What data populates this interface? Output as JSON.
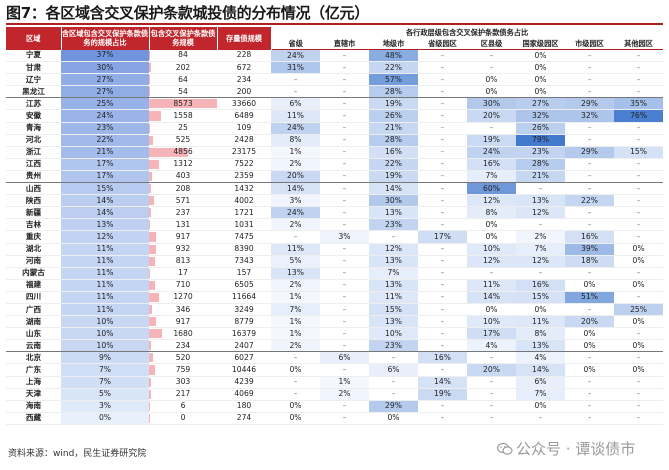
{
  "title": "图7：各区域含交叉保护条款城投债的分布情况（亿元）",
  "source": "资料来源：wind，民生证券研究院",
  "watermark": "公众号 · 谭谈债市",
  "header": {
    "col_region": "区域",
    "col_share": "含区域包含交叉保护条款债务的规模占比",
    "col_amount": "包含交叉保护条款债务规模",
    "col_stock": "存量债规模",
    "gov_group": "各行政层级包含交叉保护条款债务占比",
    "levels": [
      "省级",
      "直辖市",
      "地级市",
      "省级园区",
      "区县级",
      "国家级园区",
      "市级园区",
      "其他园区"
    ]
  },
  "colors": {
    "header_red": "#c0262c",
    "bar_pink": "#f6b4b8",
    "cell_blue_dark": "#5b8fd6",
    "cell_blue_light": "#e8f0fb"
  },
  "rows": [
    {
      "region": "宁夏",
      "share": "37%",
      "amount": "84",
      "stock": "228",
      "levels": [
        "24%",
        "–",
        "48%",
        "–",
        "–",
        "0%",
        "–",
        "–"
      ]
    },
    {
      "region": "甘肃",
      "share": "30%",
      "amount": "202",
      "stock": "672",
      "levels": [
        "31%",
        "–",
        "22%",
        "–",
        "–",
        "0%",
        "–",
        "–"
      ]
    },
    {
      "region": "辽宁",
      "share": "27%",
      "amount": "64",
      "stock": "234",
      "levels": [
        "–",
        "–",
        "57%",
        "–",
        "0%",
        "0%",
        "–",
        "–"
      ]
    },
    {
      "region": "黑龙江",
      "share": "27%",
      "amount": "54",
      "stock": "200",
      "levels": [
        "–",
        "–",
        "28%",
        "–",
        "0%",
        "0%",
        "–",
        "–"
      ]
    },
    {
      "region": "江苏",
      "share": "25%",
      "amount": "8573",
      "stock": "33660",
      "levels": [
        "6%",
        "–",
        "19%",
        "–",
        "30%",
        "27%",
        "29%",
        "35%"
      ]
    },
    {
      "region": "安徽",
      "share": "24%",
      "amount": "1558",
      "stock": "6489",
      "levels": [
        "11%",
        "–",
        "26%",
        "–",
        "20%",
        "32%",
        "32%",
        "76%"
      ]
    },
    {
      "region": "青海",
      "share": "23%",
      "amount": "25",
      "stock": "109",
      "levels": [
        "24%",
        "–",
        "21%",
        "–",
        "–",
        "26%",
        "–",
        "–"
      ]
    },
    {
      "region": "河北",
      "share": "22%",
      "amount": "525",
      "stock": "2428",
      "levels": [
        "8%",
        "–",
        "28%",
        "–",
        "19%",
        "79%",
        "–",
        "–"
      ]
    },
    {
      "region": "浙江",
      "share": "21%",
      "amount": "4856",
      "stock": "23175",
      "levels": [
        "1%",
        "–",
        "16%",
        "–",
        "24%",
        "23%",
        "29%",
        "15%"
      ]
    },
    {
      "region": "江西",
      "share": "17%",
      "amount": "1312",
      "stock": "7522",
      "levels": [
        "2%",
        "–",
        "22%",
        "–",
        "16%",
        "28%",
        "–",
        "–"
      ]
    },
    {
      "region": "贵州",
      "share": "17%",
      "amount": "403",
      "stock": "2359",
      "levels": [
        "20%",
        "–",
        "19%",
        "–",
        "7%",
        "21%",
        "–",
        "–"
      ]
    },
    {
      "region": "山西",
      "share": "15%",
      "amount": "208",
      "stock": "1432",
      "levels": [
        "14%",
        "–",
        "14%",
        "–",
        "60%",
        "–",
        "–",
        "–"
      ]
    },
    {
      "region": "陕西",
      "share": "14%",
      "amount": "571",
      "stock": "4002",
      "levels": [
        "3%",
        "–",
        "30%",
        "–",
        "12%",
        "13%",
        "22%",
        "–"
      ]
    },
    {
      "region": "新疆",
      "share": "14%",
      "amount": "237",
      "stock": "1721",
      "levels": [
        "24%",
        "–",
        "13%",
        "–",
        "8%",
        "12%",
        "–",
        "–"
      ]
    },
    {
      "region": "吉林",
      "share": "13%",
      "amount": "131",
      "stock": "1031",
      "levels": [
        "2%",
        "–",
        "23%",
        "–",
        "0%",
        "–",
        "–",
        "–"
      ]
    },
    {
      "region": "重庆",
      "share": "12%",
      "amount": "917",
      "stock": "7475",
      "levels": [
        "–",
        "3%",
        "–",
        "17%",
        "0%",
        "2%",
        "16%",
        "–"
      ]
    },
    {
      "region": "湖北",
      "share": "11%",
      "amount": "932",
      "stock": "8390",
      "levels": [
        "11%",
        "–",
        "12%",
        "–",
        "10%",
        "7%",
        "39%",
        "0%"
      ]
    },
    {
      "region": "河南",
      "share": "11%",
      "amount": "813",
      "stock": "7343",
      "levels": [
        "5%",
        "–",
        "13%",
        "–",
        "12%",
        "12%",
        "18%",
        "0%"
      ]
    },
    {
      "region": "内蒙古",
      "share": "11%",
      "amount": "17",
      "stock": "157",
      "levels": [
        "13%",
        "–",
        "7%",
        "–",
        "–",
        "–",
        "–",
        "–"
      ]
    },
    {
      "region": "福建",
      "share": "11%",
      "amount": "710",
      "stock": "6505",
      "levels": [
        "2%",
        "–",
        "13%",
        "–",
        "11%",
        "16%",
        "0%",
        "0%"
      ]
    },
    {
      "region": "四川",
      "share": "11%",
      "amount": "1270",
      "stock": "11664",
      "levels": [
        "1%",
        "–",
        "11%",
        "–",
        "14%",
        "15%",
        "51%",
        "–"
      ]
    },
    {
      "region": "广西",
      "share": "11%",
      "amount": "346",
      "stock": "3249",
      "levels": [
        "7%",
        "–",
        "15%",
        "–",
        "0%",
        "0%",
        "–",
        "25%"
      ]
    },
    {
      "region": "湖南",
      "share": "10%",
      "amount": "917",
      "stock": "8779",
      "levels": [
        "1%",
        "–",
        "13%",
        "–",
        "10%",
        "11%",
        "20%",
        "0%"
      ]
    },
    {
      "region": "山东",
      "share": "10%",
      "amount": "1680",
      "stock": "16379",
      "levels": [
        "1%",
        "–",
        "10%",
        "–",
        "17%",
        "8%",
        "0%",
        "–"
      ]
    },
    {
      "region": "云南",
      "share": "10%",
      "amount": "234",
      "stock": "2407",
      "levels": [
        "2%",
        "–",
        "23%",
        "–",
        "4%",
        "13%",
        "0%",
        "0%"
      ]
    },
    {
      "region": "北京",
      "share": "9%",
      "amount": "520",
      "stock": "6027",
      "levels": [
        "–",
        "6%",
        "–",
        "16%",
        "–",
        "4%",
        "–",
        "–"
      ]
    },
    {
      "region": "广东",
      "share": "7%",
      "amount": "759",
      "stock": "10446",
      "levels": [
        "0%",
        "–",
        "6%",
        "–",
        "20%",
        "14%",
        "0%",
        "0%"
      ]
    },
    {
      "region": "上海",
      "share": "7%",
      "amount": "303",
      "stock": "4239",
      "levels": [
        "–",
        "1%",
        "–",
        "14%",
        "–",
        "6%",
        "–",
        "–"
      ]
    },
    {
      "region": "天津",
      "share": "5%",
      "amount": "217",
      "stock": "4069",
      "levels": [
        "–",
        "2%",
        "–",
        "19%",
        "–",
        "7%",
        "–",
        "–"
      ]
    },
    {
      "region": "海南",
      "share": "3%",
      "amount": "6",
      "stock": "180",
      "levels": [
        "0%",
        "–",
        "29%",
        "–",
        "–",
        "0%",
        "–",
        "–"
      ]
    },
    {
      "region": "西藏",
      "share": "0%",
      "amount": "0",
      "stock": "274",
      "levels": [
        "0%",
        "–",
        "0%",
        "–",
        "–",
        "–",
        "–",
        "–"
      ]
    }
  ]
}
